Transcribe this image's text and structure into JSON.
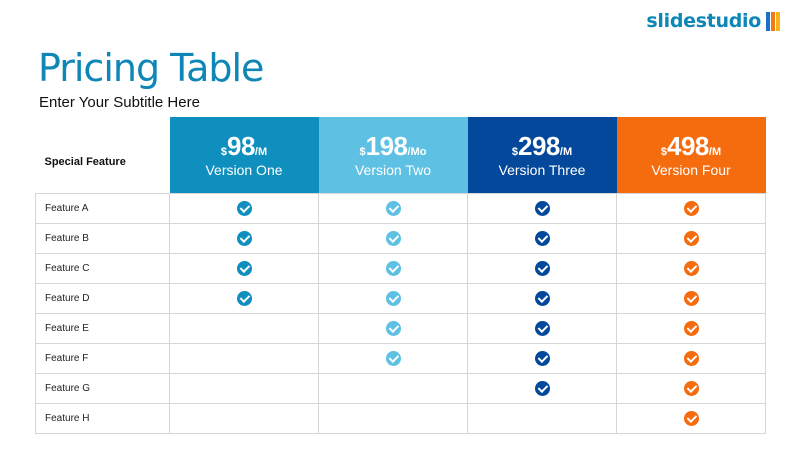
{
  "logo": {
    "text": "slidestudio",
    "bar_colors": [
      "#1f6fc6",
      "#f07a1a",
      "#f7b21c"
    ]
  },
  "title": "Pricing Table",
  "subtitle": "Enter Your Subtitle Here",
  "table": {
    "header_label": "Special Feature",
    "plans": [
      {
        "currency": "$",
        "price": "98",
        "period": "/M",
        "name": "Version One",
        "color": "#0e8fbe"
      },
      {
        "currency": "$",
        "price": "198",
        "period": "/Mo",
        "name": "Version Two",
        "color": "#5ec1e3"
      },
      {
        "currency": "$",
        "price": "298",
        "period": "/M",
        "name": "Version Three",
        "color": "#03489b"
      },
      {
        "currency": "$",
        "price": "498",
        "period": "/M",
        "name": "Version Four",
        "color": "#f56c0e"
      }
    ],
    "features": [
      {
        "name": "Feature A",
        "included": [
          true,
          true,
          true,
          true
        ]
      },
      {
        "name": "Feature B",
        "included": [
          true,
          true,
          true,
          true
        ]
      },
      {
        "name": "Feature C",
        "included": [
          true,
          true,
          true,
          true
        ]
      },
      {
        "name": "Feature D",
        "included": [
          true,
          true,
          true,
          true
        ]
      },
      {
        "name": "Feature E",
        "included": [
          false,
          true,
          true,
          true
        ]
      },
      {
        "name": "Feature F",
        "included": [
          false,
          true,
          true,
          true
        ]
      },
      {
        "name": "Feature G",
        "included": [
          false,
          false,
          true,
          true
        ]
      },
      {
        "name": "Feature H",
        "included": [
          false,
          false,
          false,
          true
        ]
      }
    ]
  }
}
